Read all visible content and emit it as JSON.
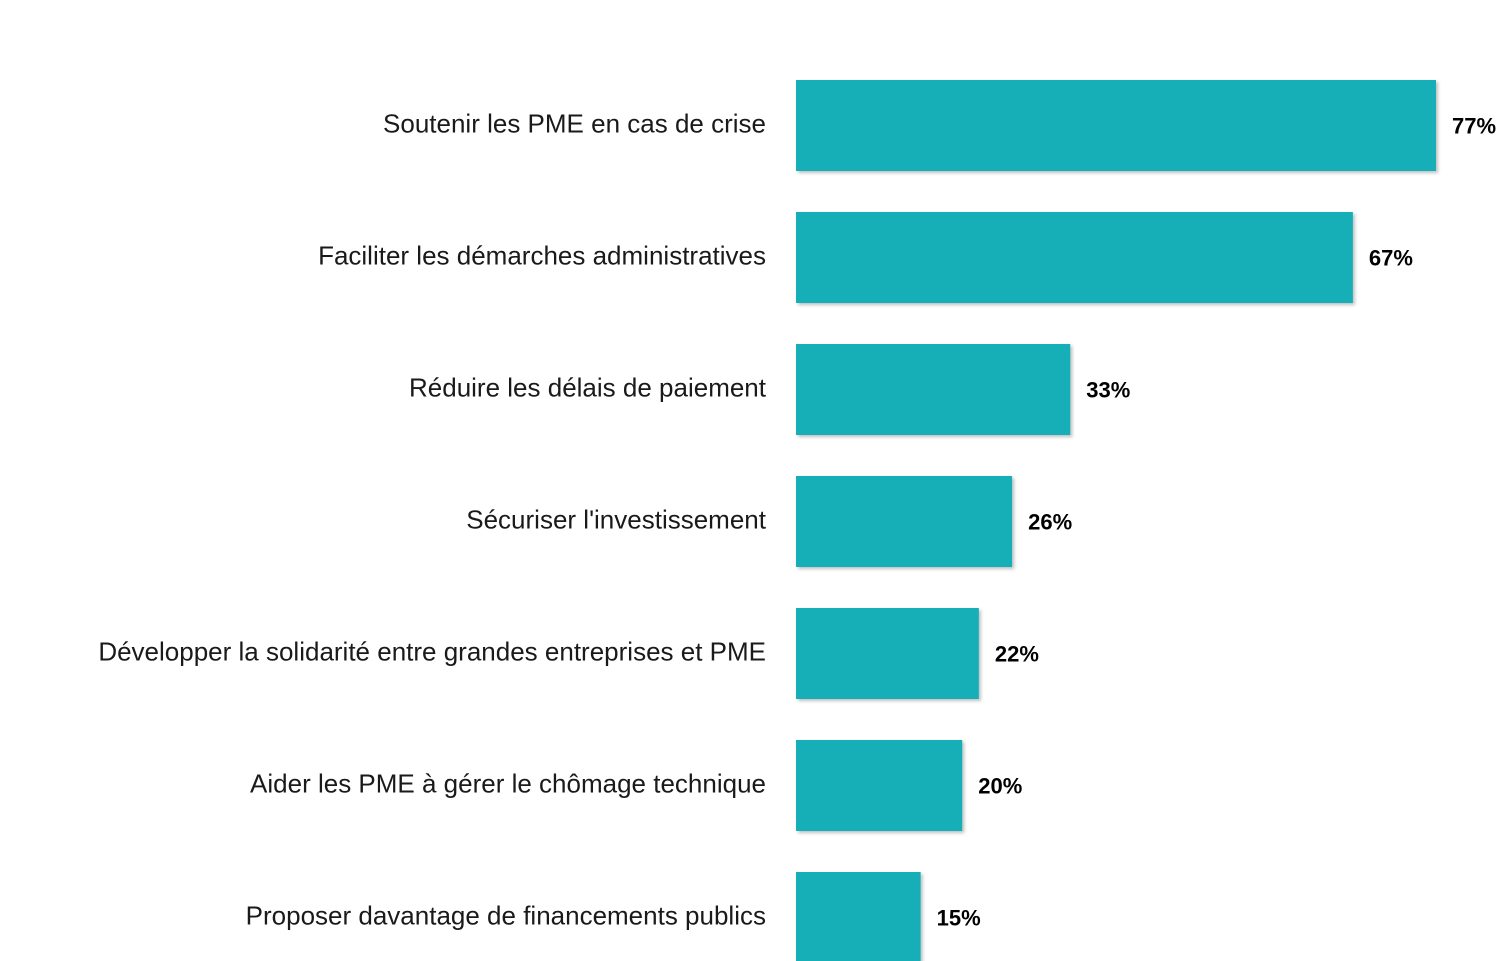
{
  "chart_data": {
    "type": "bar",
    "orientation": "horizontal",
    "color": "#14afb8",
    "categories": [
      "Soutenir les PME en cas de crise",
      "Faciliter les démarches administratives",
      "Réduire les délais de paiement",
      "Sécuriser l'investissement",
      "Développer la solidarité entre grandes entreprises et PME",
      "Aider les PME à gérer le chômage technique",
      "Proposer davantage de financements publics"
    ],
    "values": [
      77,
      67,
      33,
      26,
      22,
      20,
      15
    ],
    "value_labels": [
      "77%",
      "67%",
      "33%",
      "26%",
      "22%",
      "20%",
      "15%"
    ]
  }
}
